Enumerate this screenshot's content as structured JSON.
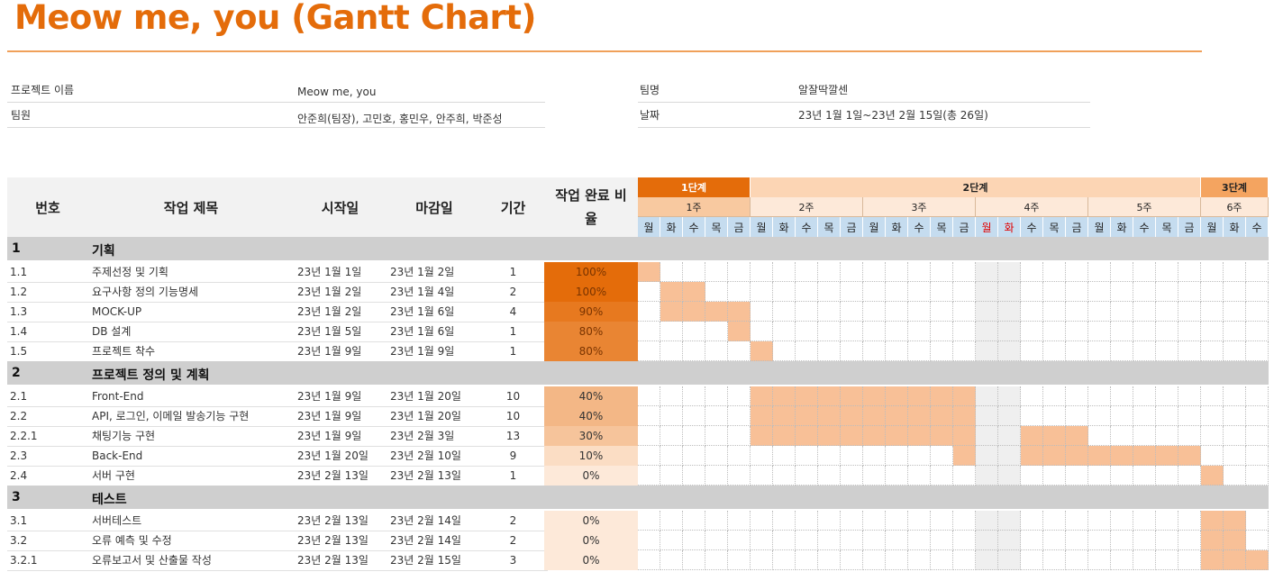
{
  "title": "Meow me, you (Gantt Chart)",
  "info": {
    "project_label": "프로젝트 이름",
    "project_value": "Meow me, you",
    "members_label": "팀원",
    "members_value": "안준희(팀장), 고민호, 홍민우, 안주희, 박준성",
    "team_label": "팀명",
    "team_value": "알잘딱깔센",
    "date_label": "날짜",
    "date_value": "23년 1월 1일~23년 2월 15일(총 26일)"
  },
  "headers": {
    "num": "번호",
    "task": "작업 제목",
    "start": "시작일",
    "end": "마감일",
    "duration": "기간",
    "completion": "작업 완료 비율"
  },
  "phases": [
    {
      "label": "1단계",
      "color": "#e46c0a",
      "text_color": "#ffffff"
    },
    {
      "label": "2단계",
      "color": "#fcd5b4",
      "text_color": "#222222"
    },
    {
      "label": "3단계",
      "color": "#f4a460",
      "text_color": "#222222"
    }
  ],
  "weeks": [
    {
      "label": "1주",
      "color": "#f8c9a0"
    },
    {
      "label": "2주",
      "color": "#fde9d9"
    },
    {
      "label": "3주",
      "color": "#fde9d9"
    },
    {
      "label": "4주",
      "color": "#fde9d9"
    },
    {
      "label": "5주",
      "color": "#fde9d9"
    },
    {
      "label": "6주",
      "color": "#fde9d9"
    }
  ],
  "days": [
    "월",
    "화",
    "수",
    "목",
    "금",
    "월",
    "화",
    "수",
    "목",
    "금",
    "월",
    "화",
    "수",
    "목",
    "금",
    "월",
    "화",
    "수",
    "목",
    "금",
    "월",
    "화",
    "수",
    "목",
    "금",
    "월",
    "화",
    "수"
  ],
  "holiday_days": [
    15,
    16
  ],
  "colors": {
    "accent": "#e46c0a",
    "bar": "#f8c097",
    "day_bg": "#c5dcef",
    "holiday_text": "#e00000",
    "holiday_col": "#efefef",
    "section_bg": "#cfcfcf",
    "header_bg": "#f2f2f2"
  },
  "sections": [
    {
      "num": "1",
      "title": "기획",
      "tasks": [
        {
          "num": "1.1",
          "title": "주제선정 및 기획",
          "start": "23년 1월 1일",
          "end": "23년 1월 2일",
          "duration": "1",
          "completion": "100%",
          "pct": 1.0,
          "bar": [
            0,
            0
          ]
        },
        {
          "num": "1.2",
          "title": "요구사항 정의 기능명세",
          "start": "23년 1월 2일",
          "end": "23년 1월 4일",
          "duration": "2",
          "completion": "100%",
          "pct": 1.0,
          "bar": [
            1,
            2
          ]
        },
        {
          "num": "1.3",
          "title": "MOCK-UP",
          "start": "23년 1월 2일",
          "end": "23년 1월 6일",
          "duration": "4",
          "completion": "90%",
          "pct": 0.9,
          "bar": [
            1,
            4
          ]
        },
        {
          "num": "1.4",
          "title": "DB 설계",
          "start": "23년 1월 5일",
          "end": "23년 1월 6일",
          "duration": "1",
          "completion": "80%",
          "pct": 0.8,
          "bar": [
            4,
            4
          ]
        },
        {
          "num": "1.5",
          "title": "프로젝트 착수",
          "start": "23년 1월 9일",
          "end": "23년 1월 9일",
          "duration": "1",
          "completion": "80%",
          "pct": 0.8,
          "bar": [
            5,
            5
          ]
        }
      ]
    },
    {
      "num": "2",
      "title": "프로젝트 정의 및 계획",
      "tasks": [
        {
          "num": "2.1",
          "title": "Front-End",
          "start": "23년 1월 9일",
          "end": "23년 1월 20일",
          "duration": "10",
          "completion": "40%",
          "pct": 0.4,
          "bar": [
            5,
            14
          ]
        },
        {
          "num": "2.2",
          "title": "API, 로그인, 이메일 발송기능 구현",
          "start": "23년 1월 9일",
          "end": "23년 1월 20일",
          "duration": "10",
          "completion": "40%",
          "pct": 0.4,
          "bar": [
            5,
            14
          ]
        },
        {
          "num": "2.2.1",
          "title": "채팅기능 구현",
          "start": "23년 1월 9일",
          "end": "23년 2월 3일",
          "duration": "13",
          "completion": "30%",
          "pct": 0.3,
          "bar": [
            5,
            14
          ],
          "bar2": [
            17,
            19
          ]
        },
        {
          "num": "2.3",
          "title": "Back-End",
          "start": "23년 1월 20일",
          "end": "23년 2월 10일",
          "duration": "9",
          "completion": "10%",
          "pct": 0.1,
          "bar": [
            14,
            14
          ],
          "bar2": [
            17,
            24
          ]
        },
        {
          "num": "2.4",
          "title": "서버 구현",
          "start": "23년 2월 13일",
          "end": "23년 2월 13일",
          "duration": "1",
          "completion": "0%",
          "pct": 0.0,
          "bar": [
            25,
            25
          ]
        }
      ]
    },
    {
      "num": "3",
      "title": "테스트",
      "tasks": [
        {
          "num": "3.1",
          "title": "서버테스트",
          "start": "23년 2월 13일",
          "end": "23년 2월 14일",
          "duration": "2",
          "completion": "0%",
          "pct": 0.0,
          "bar": [
            25,
            26
          ]
        },
        {
          "num": "3.2",
          "title": "오류 예측 및 수정",
          "start": "23년 2월 13일",
          "end": "23년 2월 14일",
          "duration": "2",
          "completion": "0%",
          "pct": 0.0,
          "bar": [
            25,
            26
          ]
        },
        {
          "num": "3.2.1",
          "title": "오류보고서 및 산출물 작성",
          "start": "23년 2월 13일",
          "end": "23년 2월 15일",
          "duration": "3",
          "completion": "0%",
          "pct": 0.0,
          "bar": [
            25,
            27
          ]
        }
      ]
    }
  ]
}
